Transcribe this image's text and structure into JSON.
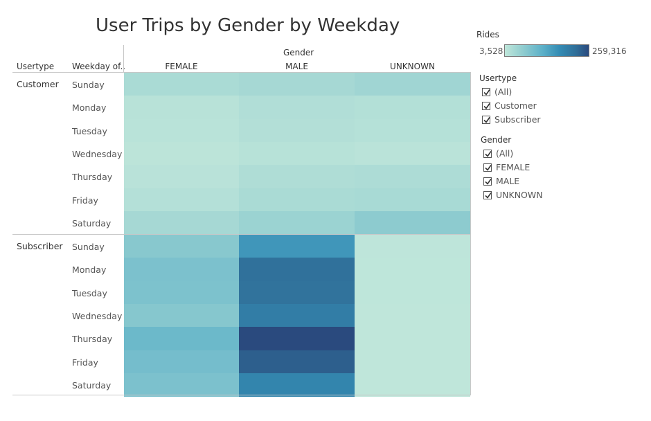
{
  "title": "User Trips by Gender by Weekday",
  "headers": {
    "usertype": "Usertype",
    "weekday": "Weekday of..",
    "gender": "Gender"
  },
  "legend": {
    "title": "Rides",
    "min": "3,528",
    "max": "259,316",
    "color_min": "#bfe6da",
    "color_max": "#2a4a7e"
  },
  "filters": {
    "usertype": {
      "title": "Usertype",
      "items": [
        "(All)",
        "Customer",
        "Subscriber"
      ]
    },
    "gender": {
      "title": "Gender",
      "items": [
        "(All)",
        "FEMALE",
        "MALE",
        "UNKNOWN"
      ]
    }
  },
  "chart_data": {
    "type": "heatmap",
    "title": "User Trips by Gender by Weekday",
    "columns": [
      "FEMALE",
      "MALE",
      "UNKNOWN"
    ],
    "color_range": [
      3528,
      259316
    ],
    "groups": [
      {
        "name": "Customer",
        "rows": [
          {
            "day": "Sunday",
            "values": [
              28000,
              33000,
              40000
            ]
          },
          {
            "day": "Monday",
            "values": [
              12000,
              20000,
              17000
            ]
          },
          {
            "day": "Tuesday",
            "values": [
              10000,
              18000,
              15000
            ]
          },
          {
            "day": "Wednesday",
            "values": [
              7000,
              13000,
              9000
            ]
          },
          {
            "day": "Thursday",
            "values": [
              11000,
              22000,
              24000
            ]
          },
          {
            "day": "Friday",
            "values": [
              16000,
              28000,
              30000
            ]
          },
          {
            "day": "Saturday",
            "values": [
              33000,
              45000,
              62000
            ]
          }
        ]
      },
      {
        "name": "Subscriber",
        "rows": [
          {
            "day": "Sunday",
            "values": [
              68000,
              155000,
              5000
            ]
          },
          {
            "day": "Monday",
            "values": [
              82000,
              215000,
              4500
            ]
          },
          {
            "day": "Tuesday",
            "values": [
              80000,
              213000,
              4500
            ]
          },
          {
            "day": "Wednesday",
            "values": [
              70000,
              195000,
              4000
            ]
          },
          {
            "day": "Thursday",
            "values": [
              100000,
              259316,
              3800
            ]
          },
          {
            "day": "Friday",
            "values": [
              90000,
              237000,
              3700
            ]
          },
          {
            "day": "Saturday",
            "values": [
              82000,
              182000,
              3528
            ]
          }
        ]
      }
    ]
  }
}
